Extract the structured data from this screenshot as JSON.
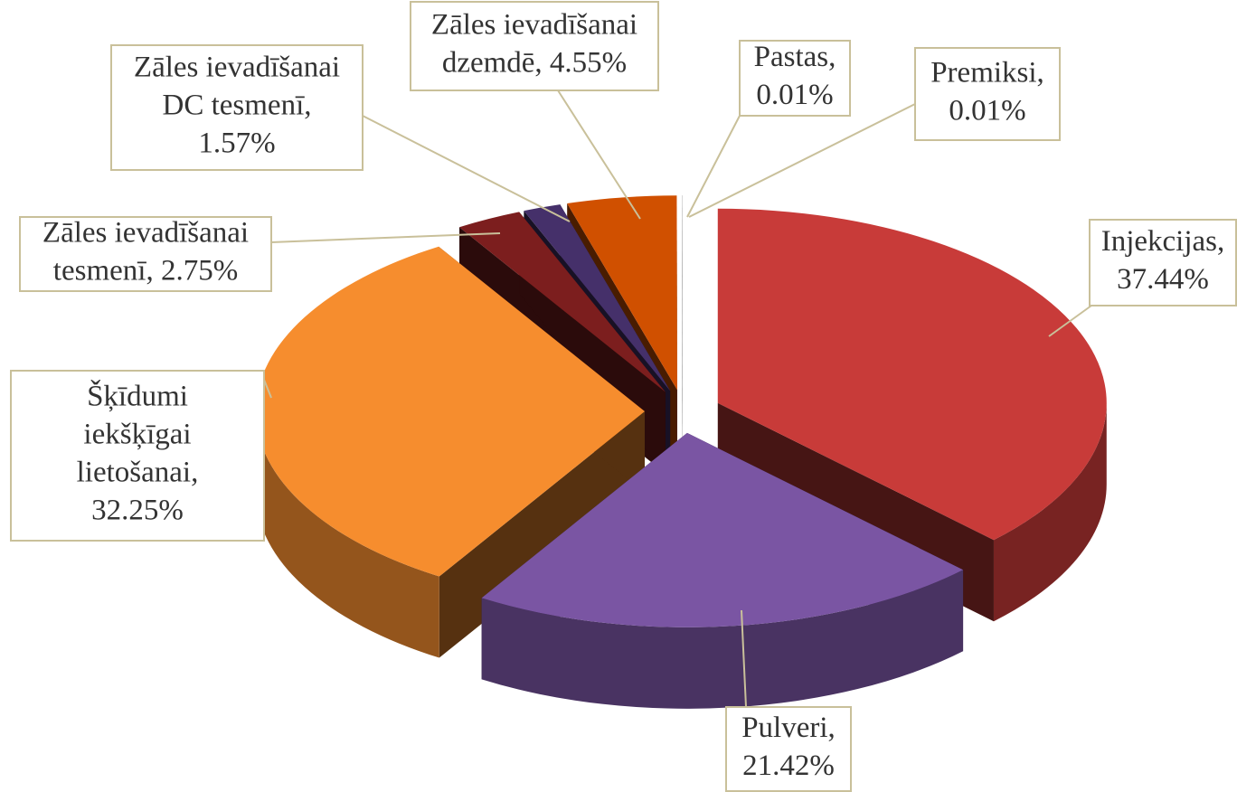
{
  "chart_data": {
    "type": "pie3d",
    "labels": [
      [
        "Injekcijas,",
        "37.44%"
      ],
      [
        "Pulveri,",
        "21.42%"
      ],
      [
        "Šķīdumi",
        "iekšķīgai",
        "lietošanai,",
        "32.25%"
      ],
      [
        "Zāles ievadīšanai",
        "tesmenī, 2.75%"
      ],
      [
        "Zāles ievadīšanai",
        "DC tesmenī,",
        "1.57%"
      ],
      [
        "Zāles ievadīšanai",
        "dzemdē, 4.55%"
      ],
      [
        "Pastas,",
        "0.01%"
      ],
      [
        "Premiksi,",
        "0.01%"
      ]
    ],
    "values": [
      37.44,
      21.42,
      32.25,
      2.75,
      1.57,
      4.55,
      0.01,
      0.01
    ],
    "colors": [
      "#c83b39",
      "#7a55a3",
      "#f68d2e",
      "#7c1e1e",
      "#45306a",
      "#d05000",
      "#b0b0b0",
      "#b0b0b0"
    ]
  }
}
